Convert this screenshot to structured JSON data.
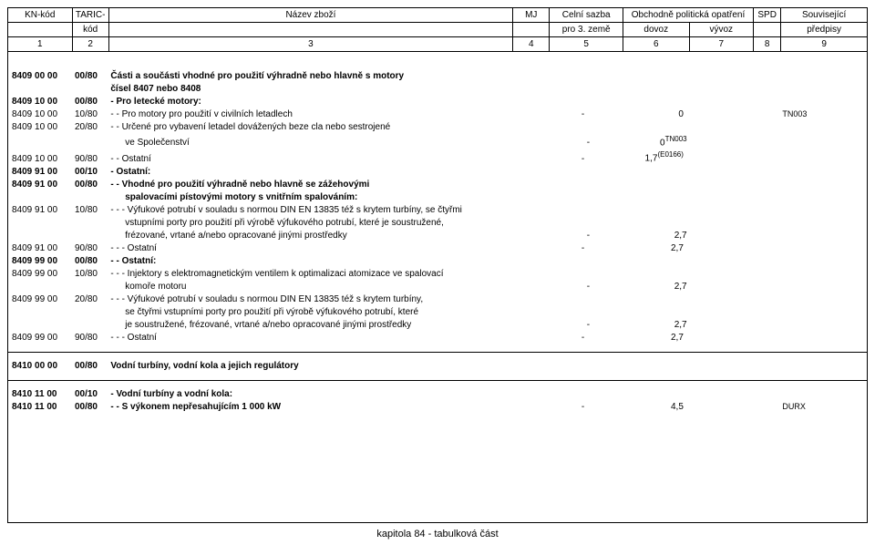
{
  "header": {
    "row1": [
      "KN-kód",
      "TARIC-",
      "Název zboží",
      "MJ",
      "Celní sazba",
      "Obchodně politická opatření",
      "SPD",
      "Související"
    ],
    "row2": [
      "",
      "kód",
      "",
      "",
      "pro 3. země",
      "dovoz",
      "vývoz",
      "",
      "předpisy"
    ],
    "row3": [
      "1",
      "2",
      "3",
      "4",
      "5",
      "6",
      "7",
      "8",
      "9"
    ]
  },
  "rows": [
    {
      "kn": "8409 00 00",
      "taric": "00/80",
      "name": "Části a součásti vhodné pro použití výhradně nebo hlavně s motory",
      "bold": true
    },
    {
      "name": "čísel 8407 nebo 8408",
      "bold": true,
      "indent": 0
    },
    {
      "kn": "8409 10 00",
      "taric": "00/80",
      "name": "- Pro letecké motory:",
      "bold": true
    },
    {
      "kn": "8409 10 00",
      "taric": "10/80",
      "name": "- - Pro motory pro použití v civilních letadlech",
      "cs": "-",
      "dovoz": "0",
      "souv": "TN003"
    },
    {
      "kn": "8409 10 00",
      "taric": "20/80",
      "name": "- - Určené pro vybavení letadel dovážených beze cla nebo sestrojené"
    },
    {
      "name": "ve Společenství",
      "indent": 1,
      "cs": "-",
      "dovoz": "0",
      "dovozSup": "TN003"
    },
    {
      "kn": "8409 10 00",
      "taric": "90/80",
      "name": "- - Ostatní",
      "cs": "-",
      "dovoz": "1,7",
      "dovozSup": "(E0166)"
    },
    {
      "kn": "8409 91 00",
      "taric": "00/10",
      "name": "- Ostatní:",
      "bold": true
    },
    {
      "kn": "8409 91 00",
      "taric": "00/80",
      "name": "- - Vhodné pro použití výhradně nebo hlavně se zážehovými",
      "bold": true
    },
    {
      "name": "spalovacími pístovými motory s vnitřním spalováním:",
      "bold": true,
      "indent": 1
    },
    {
      "kn": "8409 91 00",
      "taric": "10/80",
      "name": "- - - Výfukové potrubí v souladu s normou DIN EN 13835 též s krytem turbíny, se čtyřmi"
    },
    {
      "name": "vstupními porty pro použití při výrobě výfukového potrubí, které je soustružené,",
      "indent": 2
    },
    {
      "name": "frézované, vrtané a/nebo opracované jinými prostředky",
      "indent": 2,
      "cs": "-",
      "dovoz": "2,7"
    },
    {
      "kn": "8409 91 00",
      "taric": "90/80",
      "name": "- - - Ostatní",
      "cs": "-",
      "dovoz": "2,7"
    },
    {
      "kn": "8409 99 00",
      "taric": "00/80",
      "name": "- - Ostatní:",
      "bold": true
    },
    {
      "kn": "8409 99 00",
      "taric": "10/80",
      "name": "- - - Injektory s elektromagnetickým ventilem k optimalizaci atomizace ve spalovací"
    },
    {
      "name": "komoře motoru",
      "indent": 2,
      "cs": "-",
      "dovoz": "2,7"
    },
    {
      "kn": "8409 99 00",
      "taric": "20/80",
      "name": "- - - Výfukové potrubí v souladu s normou DIN EN 13835 též s krytem turbíny,"
    },
    {
      "name": "se čtyřmi vstupními porty pro použití při výrobě výfukového potrubí, které",
      "indent": 2
    },
    {
      "name": "je soustružené, frézované, vrtané a/nebo opracované jinými prostředky",
      "indent": 2,
      "cs": "-",
      "dovoz": "2,7"
    },
    {
      "kn": "8409 99 00",
      "taric": "90/80",
      "name": "- - - Ostatní",
      "cs": "-",
      "dovoz": "2,7"
    }
  ],
  "group2": [
    {
      "kn": "8410 00 00",
      "taric": "00/80",
      "name": "Vodní turbíny, vodní kola a jejich regulátory",
      "bold": true
    }
  ],
  "group3": [
    {
      "kn": "8410 11 00",
      "taric": "00/10",
      "name": "- Vodní turbíny a vodní kola:",
      "bold": true
    },
    {
      "kn": "8410 11 00",
      "taric": "00/80",
      "name": "- - S výkonem nepřesahujícím 1 000 kW",
      "bold": true,
      "cs": "-",
      "dovoz": "4,5",
      "souv": "DURX"
    }
  ],
  "footer": "kapitola 84 - tabulková část",
  "colWidths": {
    "kn": 70,
    "taric": 40,
    "name": 440,
    "mj": 40,
    "cs": 80,
    "dovoz": 72,
    "vyvoz": 70,
    "spd": 30,
    "souv": 94
  }
}
